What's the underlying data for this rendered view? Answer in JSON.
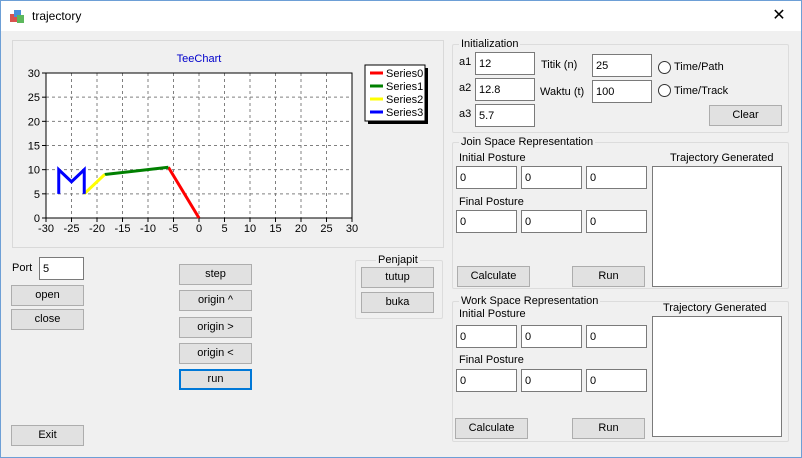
{
  "window": {
    "title": "trajectory",
    "close_glyph": "✕"
  },
  "chart_data": {
    "type": "line",
    "title": "TeeChart",
    "xlim": [
      -30,
      30
    ],
    "ylim": [
      0,
      30
    ],
    "xticks": [
      "-30",
      "-25",
      "-20",
      "-15",
      "-10",
      "-5",
      "0",
      "5",
      "10",
      "15",
      "20",
      "25",
      "30"
    ],
    "yticks": [
      "0",
      "5",
      "10",
      "15",
      "20",
      "25",
      "30"
    ],
    "grid": true,
    "legend_position": "top-right",
    "series": [
      {
        "name": "Series0",
        "color": "#ff0000",
        "x": [
          0,
          -6
        ],
        "y": [
          0,
          10.5
        ]
      },
      {
        "name": "Series1",
        "color": "#008000",
        "x": [
          -6,
          -18.5
        ],
        "y": [
          10.5,
          9
        ]
      },
      {
        "name": "Series2",
        "color": "#ffff00",
        "x": [
          -18.5,
          -22.5
        ],
        "y": [
          9,
          5
        ]
      },
      {
        "name": "Series3",
        "color": "#0000ff",
        "x": [
          -27.5,
          -27.5,
          -25,
          -22.5,
          -22.5
        ],
        "y": [
          5,
          10,
          7.5,
          10,
          5
        ]
      }
    ]
  },
  "port": {
    "label": "Port",
    "value": "5"
  },
  "buttons": {
    "open": "open",
    "close": "close",
    "exit": "Exit",
    "step": "step",
    "origin_up": "origin ^",
    "origin_right": "origin >",
    "origin_left": "origin <",
    "run": "run"
  },
  "penjapit": {
    "title": "Penjapit",
    "tutup": "tutup",
    "buka": "buka"
  },
  "init": {
    "title": "Initialization",
    "a1_label": "a1",
    "a1": "12",
    "a2_label": "a2",
    "a2": "12.8",
    "a3_label": "a3",
    "a3": "5.7",
    "titik_label": "Titik (n)",
    "titik": "25",
    "waktu_label": "Waktu (t)",
    "waktu": "100",
    "time_path": "Time/Path",
    "time_track": "Time/Track",
    "clear": "Clear"
  },
  "join": {
    "title": "Join Space Representation",
    "initial_label": "Initial Posture",
    "initial": [
      "0",
      "0",
      "0"
    ],
    "final_label": "Final Posture",
    "final": [
      "0",
      "0",
      "0"
    ],
    "traj_label": "Trajectory Generated",
    "calculate": "Calculate",
    "run": "Run"
  },
  "work": {
    "title": "Work Space Representation",
    "initial_label": "Initial Posture",
    "initial": [
      "0",
      "0",
      "0"
    ],
    "final_label": "Final Posture",
    "final": [
      "0",
      "0",
      "0"
    ],
    "traj_label": "Trajectory Generated",
    "calculate": "Calculate",
    "run": "Run"
  }
}
